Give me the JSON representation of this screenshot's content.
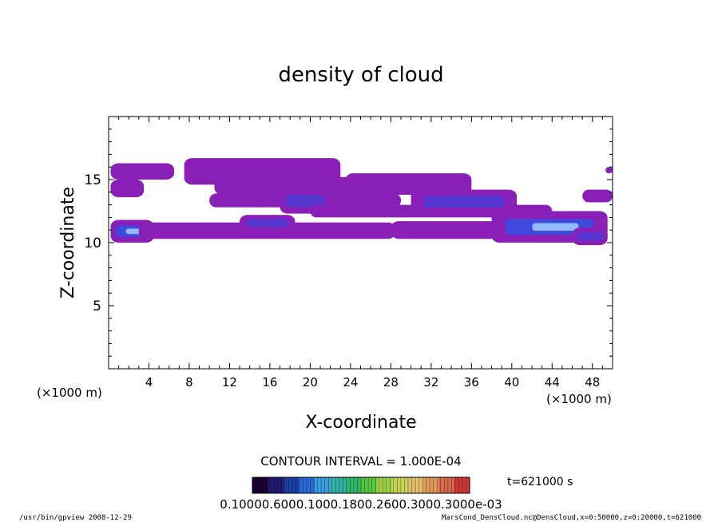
{
  "chart_data": {
    "type": "heatmap",
    "title": "density of cloud",
    "xlabel": "X-coordinate",
    "ylabel": "Z-coordinate",
    "x_unit_left": "(×1000 m)",
    "x_unit_right": "(×1000 m)",
    "xlim": [
      0,
      50
    ],
    "ylim": [
      0,
      20
    ],
    "x_ticks": [
      4,
      8,
      12,
      16,
      20,
      24,
      28,
      32,
      36,
      40,
      44,
      48
    ],
    "y_ticks": [
      5,
      10,
      15
    ],
    "x_tick_labels": [
      "4",
      "8",
      "12",
      "16",
      "20",
      "24",
      "28",
      "32",
      "36",
      "40",
      "44",
      "48"
    ],
    "y_tick_labels": [
      "5",
      "10",
      "15"
    ],
    "contour_interval": "CONTOUR INTERVAL = 1.000E-04",
    "time_label": "t=621000 s",
    "colorbar_labels": "0.10000.6000.1000.1800.2600.3000.3000e-03",
    "colorbar_colors": [
      "#1a0033",
      "#241a6b",
      "#1c3fa6",
      "#2a6ad6",
      "#3d9be0",
      "#33b0a8",
      "#2fb86a",
      "#58c640",
      "#9fd046",
      "#c7d45a",
      "#e0c06a",
      "#e09a5c",
      "#d86a4c",
      "#cc3a38"
    ],
    "cloud_layers": [
      {
        "x": [
          0.2,
          6.5
        ],
        "z": [
          15.0,
          16.3
        ],
        "level": 0.2
      },
      {
        "x": [
          0.2,
          3.5
        ],
        "z": [
          13.6,
          15.0
        ],
        "level": 0.3
      },
      {
        "x": [
          7.5,
          23.0
        ],
        "z": [
          14.6,
          16.7
        ],
        "level": 0.25
      },
      {
        "x": [
          10.5,
          36.0
        ],
        "z": [
          13.8,
          15.2
        ],
        "level": 0.3
      },
      {
        "x": [
          23.5,
          36.0
        ],
        "z": [
          14.3,
          15.5
        ],
        "level": 0.3
      },
      {
        "x": [
          10.0,
          29.0
        ],
        "z": [
          12.8,
          13.9
        ],
        "level": 0.25
      },
      {
        "x": [
          17.0,
          22.0
        ],
        "z": [
          12.3,
          14.3
        ],
        "level": 0.45
      },
      {
        "x": [
          20.0,
          44.0
        ],
        "z": [
          12.0,
          13.0
        ],
        "level": 0.25
      },
      {
        "x": [
          30.0,
          40.5
        ],
        "z": [
          12.3,
          14.2
        ],
        "level": 0.4
      },
      {
        "x": [
          47.0,
          50.0
        ],
        "z": [
          13.2,
          14.2
        ],
        "level": 0.2
      },
      {
        "x": [
          49.3,
          50.0
        ],
        "z": [
          15.5,
          16.0
        ],
        "level": 0.2
      },
      {
        "x": [
          0.2,
          4.5
        ],
        "z": [
          10.0,
          11.8
        ],
        "level": 0.55
      },
      {
        "x": [
          3.0,
          28.5
        ],
        "z": [
          10.3,
          11.6
        ],
        "level": 0.25
      },
      {
        "x": [
          13.0,
          18.5
        ],
        "z": [
          10.9,
          12.2
        ],
        "level": 0.4
      },
      {
        "x": [
          28.0,
          47.0
        ],
        "z": [
          10.3,
          11.7
        ],
        "level": 0.25
      },
      {
        "x": [
          38.0,
          49.5
        ],
        "z": [
          10.0,
          12.5
        ],
        "level": 0.6
      },
      {
        "x": [
          46.0,
          49.5
        ],
        "z": [
          9.8,
          11.2
        ],
        "level": 0.45
      }
    ]
  },
  "footer": {
    "left": "/usr/bin/gpview   2008-12-29",
    "right": "MarsCond_DensCloud.nc@DensCloud,x=0:50000,z=0:20000,t=621000"
  }
}
